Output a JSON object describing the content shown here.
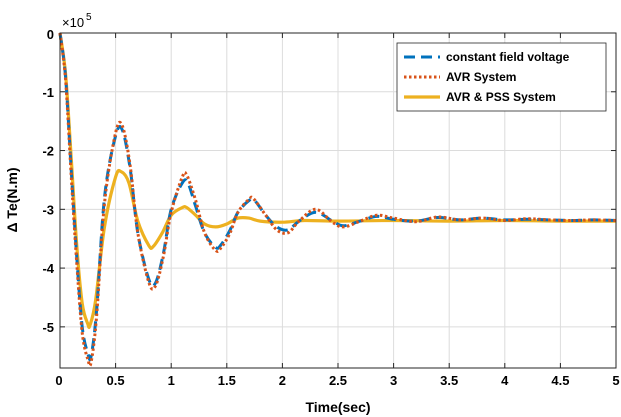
{
  "chart_data": {
    "type": "line",
    "title": "",
    "xlabel": "Time(sec)",
    "ylabel": "Δ Te(N.m)",
    "y_scale_label": "×10",
    "y_scale_exponent": "5",
    "xlim": [
      0,
      5
    ],
    "ylim": [
      -5.7,
      0
    ],
    "x_ticks": [
      0,
      0.5,
      1,
      1.5,
      2,
      2.5,
      3,
      3.5,
      4,
      4.5,
      5
    ],
    "x_tick_labels": [
      "0",
      "0.5",
      "1",
      "1.5",
      "2",
      "2.5",
      "3",
      "3.5",
      "4",
      "4.5",
      "5"
    ],
    "y_ticks": [
      0,
      -1,
      -2,
      -3,
      -4,
      -5
    ],
    "y_tick_labels": [
      "0",
      "-1",
      "-2",
      "-3",
      "-4",
      "-5"
    ],
    "grid": true,
    "legend_position": "top-right",
    "series": [
      {
        "name": "constant field voltage",
        "color": "#0072BD",
        "style": "dashed",
        "x": [
          0,
          0.05,
          0.1,
          0.15,
          0.2,
          0.25,
          0.28,
          0.33,
          0.4,
          0.5,
          0.56,
          0.63,
          0.7,
          0.8,
          0.86,
          0.93,
          1.0,
          1.1,
          1.15,
          1.22,
          1.3,
          1.4,
          1.45,
          1.53,
          1.6,
          1.7,
          1.75,
          1.85,
          1.95,
          2.05,
          2.15,
          2.3,
          2.45,
          2.55,
          2.7,
          2.85,
          3.0,
          3.2,
          3.4,
          3.6,
          3.8,
          4.0,
          4.2,
          4.4,
          4.6,
          4.8,
          5.0
        ],
        "y": [
          0,
          -0.75,
          -2.3,
          -3.8,
          -5.0,
          -5.45,
          -5.5,
          -4.7,
          -2.8,
          -1.75,
          -1.65,
          -2.3,
          -3.4,
          -4.2,
          -4.25,
          -3.75,
          -3.0,
          -2.55,
          -2.55,
          -2.95,
          -3.4,
          -3.65,
          -3.6,
          -3.35,
          -3.05,
          -2.85,
          -2.85,
          -3.1,
          -3.3,
          -3.35,
          -3.2,
          -3.05,
          -3.2,
          -3.28,
          -3.2,
          -3.12,
          -3.17,
          -3.2,
          -3.14,
          -3.18,
          -3.15,
          -3.18,
          -3.17,
          -3.18,
          -3.19,
          -3.18,
          -3.19
        ]
      },
      {
        "name": "AVR System",
        "color": "#D95319",
        "style": "dotted",
        "x": [
          0,
          0.05,
          0.1,
          0.15,
          0.2,
          0.25,
          0.28,
          0.33,
          0.4,
          0.5,
          0.56,
          0.63,
          0.7,
          0.8,
          0.86,
          0.93,
          1.0,
          1.1,
          1.14,
          1.22,
          1.3,
          1.4,
          1.45,
          1.53,
          1.6,
          1.7,
          1.74,
          1.85,
          1.95,
          2.05,
          2.15,
          2.3,
          2.45,
          2.55,
          2.7,
          2.85,
          3.0,
          3.2,
          3.4,
          3.6,
          3.8,
          4.0,
          4.2,
          4.4,
          4.6,
          4.8,
          5.0
        ],
        "y": [
          0,
          -0.8,
          -2.4,
          -3.9,
          -5.1,
          -5.55,
          -5.6,
          -4.8,
          -2.9,
          -1.7,
          -1.58,
          -2.25,
          -3.4,
          -4.25,
          -4.3,
          -3.8,
          -3.05,
          -2.45,
          -2.42,
          -2.85,
          -3.4,
          -3.7,
          -3.65,
          -3.4,
          -3.05,
          -2.83,
          -2.82,
          -3.1,
          -3.35,
          -3.4,
          -3.2,
          -3.0,
          -3.22,
          -3.3,
          -3.2,
          -3.1,
          -3.15,
          -3.21,
          -3.13,
          -3.18,
          -3.15,
          -3.19,
          -3.16,
          -3.18,
          -3.19,
          -3.18,
          -3.19
        ]
      },
      {
        "name": "AVR & PSS System",
        "color": "#EDB120",
        "style": "solid",
        "x": [
          0,
          0.05,
          0.1,
          0.15,
          0.2,
          0.25,
          0.27,
          0.32,
          0.4,
          0.5,
          0.55,
          0.62,
          0.7,
          0.8,
          0.84,
          0.92,
          1.0,
          1.1,
          1.14,
          1.22,
          1.3,
          1.4,
          1.5,
          1.6,
          1.7,
          1.8,
          2.0,
          2.2,
          2.5,
          3.0,
          3.5,
          4.0,
          4.5,
          5.0
        ],
        "y": [
          0,
          -0.7,
          -2.1,
          -3.6,
          -4.6,
          -4.95,
          -4.97,
          -4.55,
          -3.3,
          -2.45,
          -2.36,
          -2.55,
          -3.2,
          -3.62,
          -3.63,
          -3.4,
          -3.1,
          -2.97,
          -2.97,
          -3.1,
          -3.25,
          -3.3,
          -3.25,
          -3.15,
          -3.15,
          -3.2,
          -3.22,
          -3.19,
          -3.2,
          -3.19,
          -3.2,
          -3.19,
          -3.2,
          -3.2
        ]
      }
    ]
  }
}
